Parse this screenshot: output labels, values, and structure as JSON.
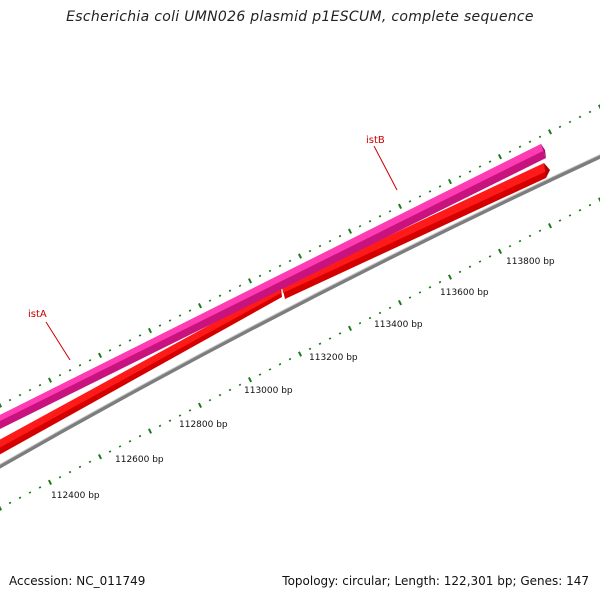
{
  "header": {
    "title": "Escherichia coli UMN026 plasmid p1ESCUM, complete sequence"
  },
  "footer": {
    "accession": "Accession: NC_011749",
    "topology": "Topology: circular; Length: 122,301 bp; Genes: 147"
  },
  "map": {
    "tick_labels": [
      {
        "label": "112400 bp",
        "value": 112400
      },
      {
        "label": "112600 bp",
        "value": 112600
      },
      {
        "label": "112800 bp",
        "value": 112800
      },
      {
        "label": "113000 bp",
        "value": 113000
      },
      {
        "label": "113200 bp",
        "value": 113200
      },
      {
        "label": "113400 bp",
        "value": 113400
      },
      {
        "label": "113600 bp",
        "value": 113600
      },
      {
        "label": "113800 bp",
        "value": 113800
      }
    ],
    "genes": [
      {
        "name": "istA",
        "color": "#ff0000"
      },
      {
        "name": "istB",
        "color": "#e8189a"
      }
    ],
    "colors": {
      "backbone": "#888888",
      "ticks": "#1a7a1a",
      "gene_label": "#cc0000",
      "forward_feature": "#e8189a",
      "cds_feature": "#ff0000"
    }
  }
}
